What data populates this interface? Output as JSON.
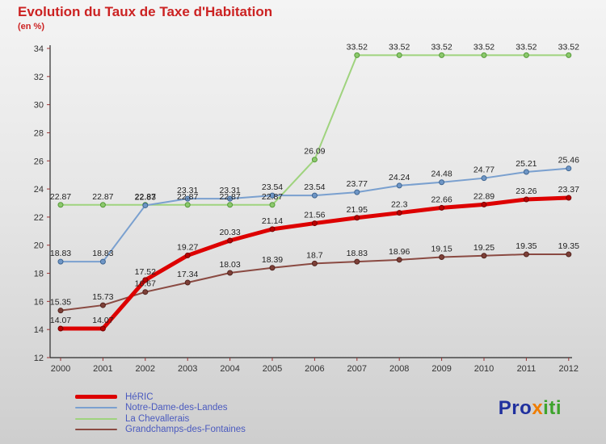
{
  "title": "Evolution du Taux de Taxe d'Habitation",
  "subtitle": "(en %)",
  "colors": {
    "title": "#cc2222",
    "axis": "#2b2b2b",
    "tick": "#993333",
    "tick_label": "#333333",
    "point_label": "#222222",
    "legend_text": "#4a5abf"
  },
  "chart_data": {
    "type": "line",
    "title": "Evolution du Taux de Taxe d'Habitation",
    "subtitle": "(en %)",
    "xlabel": "",
    "ylabel": "",
    "x": [
      2000,
      2001,
      2002,
      2003,
      2004,
      2005,
      2006,
      2007,
      2008,
      2009,
      2010,
      2011,
      2012
    ],
    "ylim": [
      12,
      34
    ],
    "ytick_step": 2,
    "grid": false,
    "legend_position": "bottom-left",
    "point_labels": true,
    "series": [
      {
        "name": "HéRIC",
        "color": "#dd0000",
        "width": 5,
        "marker_fill": "#bb0000",
        "marker_stroke": "#770000",
        "marker_r": 3,
        "values": [
          14.07,
          14.07,
          17.52,
          19.27,
          20.33,
          21.14,
          21.56,
          21.95,
          22.3,
          22.66,
          22.89,
          23.26,
          23.37
        ]
      },
      {
        "name": "Notre-Dame-des-Landes",
        "color": "#7aa0cf",
        "width": 2,
        "marker_fill": "#6f96c6",
        "marker_stroke": "#3f6691",
        "marker_r": 3,
        "values": [
          18.83,
          18.83,
          22.83,
          23.31,
          23.31,
          23.54,
          23.54,
          23.77,
          24.24,
          24.48,
          24.77,
          25.21,
          25.46
        ]
      },
      {
        "name": "La Chevallerais",
        "color": "#9fd37e",
        "width": 2,
        "marker_fill": "#8cc96c",
        "marker_stroke": "#569a3a",
        "marker_r": 3,
        "values": [
          22.87,
          22.87,
          22.87,
          22.87,
          22.87,
          22.87,
          26.09,
          33.52,
          33.52,
          33.52,
          33.52,
          33.52,
          33.52
        ]
      },
      {
        "name": "Grandchamps-des-Fontaines",
        "color": "#8a4a42",
        "width": 2,
        "marker_fill": "#7d4038",
        "marker_stroke": "#52241e",
        "marker_r": 3,
        "values": [
          15.35,
          15.73,
          16.67,
          17.34,
          18.03,
          18.39,
          18.7,
          18.83,
          18.96,
          19.15,
          19.25,
          19.35,
          19.35
        ]
      }
    ]
  },
  "logo": {
    "parts": [
      {
        "text": "Pro",
        "color": "#20309e"
      },
      {
        "text": "x",
        "color": "#ef7d00"
      },
      {
        "text": "iti",
        "color": "#3da32c"
      }
    ]
  }
}
